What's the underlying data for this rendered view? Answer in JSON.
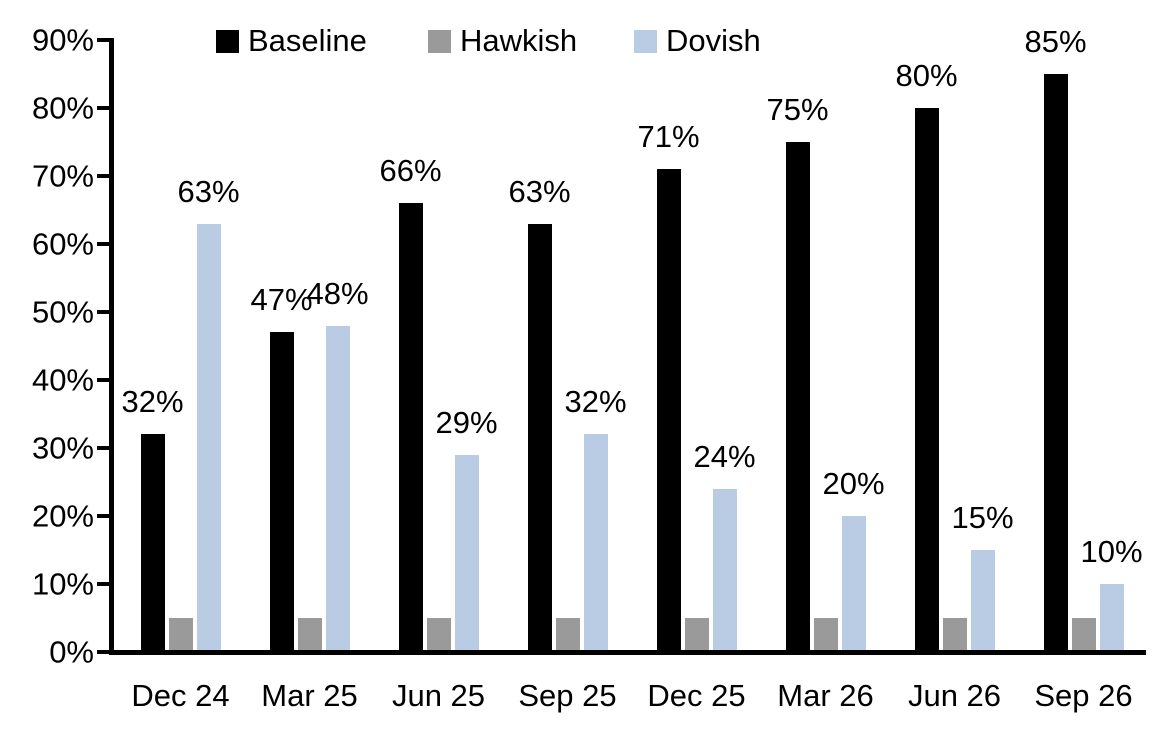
{
  "chart_data": {
    "type": "bar",
    "title": "",
    "xlabel": "",
    "ylabel": "",
    "categories": [
      "Dec 24",
      "Mar 25",
      "Jun 25",
      "Sep 25",
      "Dec 25",
      "Mar 26",
      "Jun 26",
      "Sep 26"
    ],
    "series": [
      {
        "name": "Baseline",
        "color": "#000000",
        "values": [
          32,
          47,
          66,
          63,
          71,
          75,
          80,
          85
        ],
        "show_labels": true
      },
      {
        "name": "Hawkish",
        "color": "#9a9a9a",
        "values": [
          5,
          5,
          5,
          5,
          5,
          5,
          5,
          5
        ],
        "show_labels": false
      },
      {
        "name": "Dovish",
        "color": "#b9cce4",
        "values": [
          63,
          48,
          29,
          32,
          24,
          20,
          15,
          10
        ],
        "show_labels": true
      }
    ],
    "data_label_format": "{v}%",
    "ylim": [
      0,
      90
    ],
    "ytick_step": 10,
    "ytick_labels": [
      "0%",
      "10%",
      "20%",
      "30%",
      "40%",
      "50%",
      "60%",
      "70%",
      "80%",
      "90%"
    ],
    "legend_position": "top",
    "legend_entries": [
      "Baseline",
      "Hawkish",
      "Dovish"
    ],
    "grid": false,
    "axis_color": "#000000",
    "background_color": "#ffffff"
  }
}
